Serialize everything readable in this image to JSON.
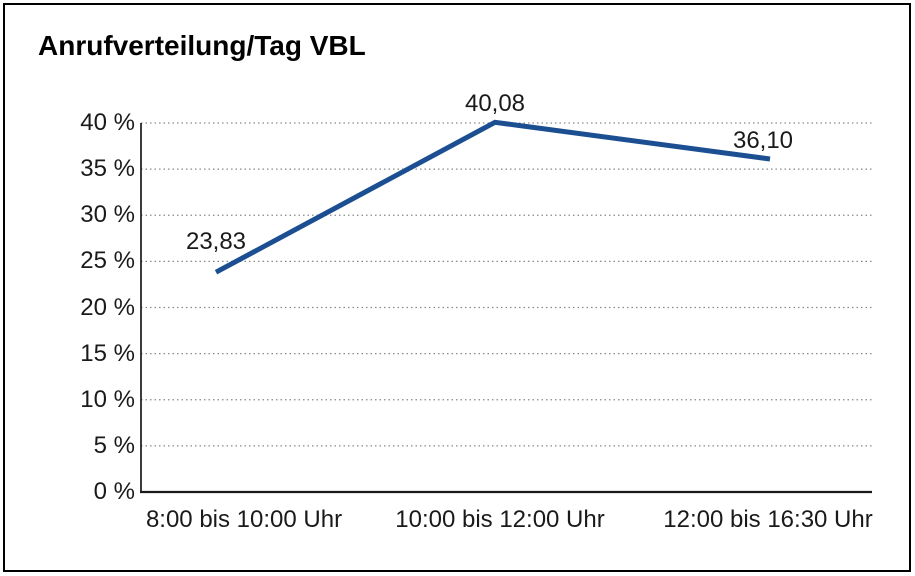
{
  "figure": {
    "background": "#FFFFFF",
    "border_color": "#000000"
  },
  "chart_data": {
    "type": "line",
    "title": "Anrufverteilung/Tag VBL",
    "categories": [
      "8:00 bis 10:00 Uhr",
      "10:00 bis 12:00 Uhr",
      "12:00 bis 16:30 Uhr"
    ],
    "values": [
      23.83,
      40.08,
      36.1
    ],
    "value_labels": [
      "23,83",
      "40,08",
      "36,10"
    ],
    "y_axis": {
      "min": 0,
      "max": 40,
      "tick_step": 5,
      "tick_labels": [
        "0 %",
        "5 %",
        "10 %",
        "15 %",
        "20 %",
        "25 %",
        "30 %",
        "35 %",
        "40 %"
      ]
    },
    "xlabel": "",
    "ylabel": "",
    "grid": "horizontal-dotted",
    "legend": "none",
    "line_color": "#1B4F91",
    "grid_color": "#8A8A8A",
    "axis_color": "#1A1A1A",
    "text_color": "#1A1A1A"
  }
}
